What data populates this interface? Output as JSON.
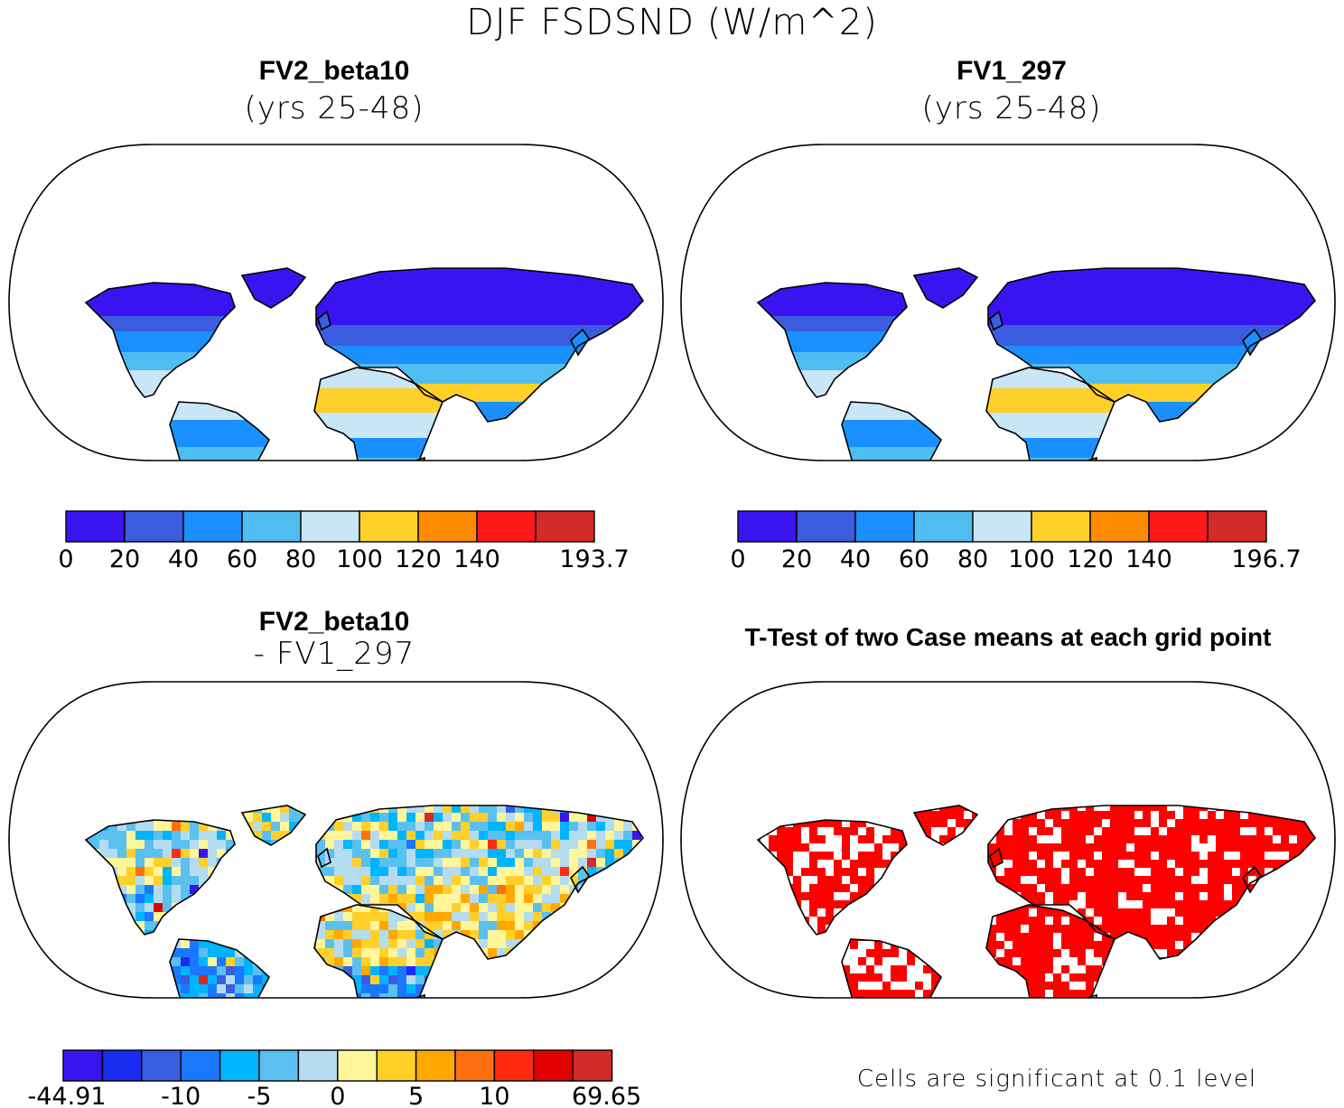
{
  "title": "DJF FSDSND (W/m^2)",
  "colors": {
    "seq": [
      "#3a14f0",
      "#3a5de0",
      "#1a90ff",
      "#4fbdf0",
      "#c8e6f5",
      "#ffd02a",
      "#ff8c00",
      "#ff1a1a",
      "#d42a2a"
    ],
    "diff": [
      "#3a14f0",
      "#1a2bf0",
      "#3a5de0",
      "#1a78ff",
      "#00b4ff",
      "#5ac0f0",
      "#b4dcf0",
      "#fff59a",
      "#ffd02a",
      "#ffa800",
      "#ff7010",
      "#ff2a10",
      "#e00000",
      "#d42a2a"
    ],
    "significant": "#ff0000",
    "coast": "#000000"
  },
  "panels": [
    {
      "id": "p1",
      "title": "FV2_beta10",
      "subtitle": "(yrs 25-48)",
      "colorbar": {
        "labels": [
          "0",
          "20",
          "40",
          "60",
          "80",
          "100",
          "120",
          "140",
          "193.7"
        ]
      }
    },
    {
      "id": "p2",
      "title": "FV1_297",
      "subtitle": "(yrs 25-48)",
      "colorbar": {
        "labels": [
          "0",
          "20",
          "40",
          "60",
          "80",
          "100",
          "120",
          "140",
          "196.7"
        ]
      }
    },
    {
      "id": "p3",
      "title": "FV2_beta10",
      "subtitle": "- FV1_297",
      "colorbar": {
        "labels": [
          "-44.91",
          "-10",
          "-5",
          "0",
          "5",
          "10",
          "69.65"
        ]
      }
    },
    {
      "id": "p4",
      "title": "T-Test of two Case means at each grid point",
      "note": "Cells are significant at 0.1 level"
    }
  ]
}
